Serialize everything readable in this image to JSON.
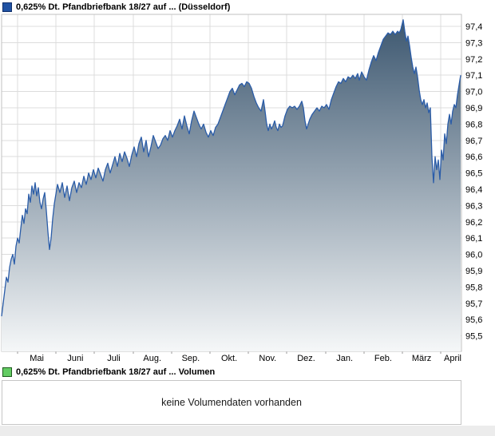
{
  "price_chart": {
    "legend": "0,625% Dt. Pfandbriefbank 18/27 auf ... (Düsseldorf)",
    "marker_color": "#2052a3",
    "marker_border": "#12306b"
  },
  "volume_panel": {
    "legend": "0,625% Dt. Pfandbriefbank 18/27 auf ... Volumen",
    "marker_color": "#63cc63",
    "marker_border": "#1e5c1e",
    "message": "keine Volumendaten vorhanden"
  },
  "chart_data": {
    "type": "area",
    "title": "0,625% Dt. Pfandbriefbank 18/27 auf ... (Düsseldorf)",
    "xlabel": "",
    "ylabel": "",
    "x_tick_labels": [
      "Mai",
      "Juni",
      "Juli",
      "Aug.",
      "Sep.",
      "Okt.",
      "Nov.",
      "Dez.",
      "Jan.",
      "Feb.",
      "März",
      "April"
    ],
    "y_ticks": [
      97.4,
      97.3,
      97.2,
      97.1,
      97.0,
      96.9,
      96.8,
      96.7,
      96.6,
      96.5,
      96.4,
      96.3,
      96.2,
      96.1,
      96.0,
      95.9,
      95.8,
      95.7,
      95.6,
      95.5
    ],
    "ylim": [
      95.41,
      97.47
    ],
    "grid": true,
    "legend_position": "top-left",
    "y_axis_position": "right",
    "line_color": "#2a5ca8",
    "fill_top": "#3a556e",
    "fill_bottom": "#f5f7f8",
    "grid_color": "#dcdcdc",
    "border_color": "#c2c2c2",
    "points": [
      [
        2,
        95.62
      ],
      [
        4,
        95.7
      ],
      [
        6,
        95.78
      ],
      [
        8,
        95.86
      ],
      [
        10,
        95.83
      ],
      [
        12,
        95.92
      ],
      [
        14,
        95.97
      ],
      [
        16,
        96.0
      ],
      [
        18,
        95.94
      ],
      [
        20,
        96.05
      ],
      [
        22,
        96.1
      ],
      [
        24,
        96.07
      ],
      [
        26,
        96.16
      ],
      [
        28,
        96.24
      ],
      [
        30,
        96.19
      ],
      [
        32,
        96.28
      ],
      [
        34,
        96.25
      ],
      [
        36,
        96.37
      ],
      [
        38,
        96.32
      ],
      [
        40,
        96.42
      ],
      [
        42,
        96.37
      ],
      [
        44,
        96.44
      ],
      [
        46,
        96.36
      ],
      [
        48,
        96.41
      ],
      [
        50,
        96.32
      ],
      [
        52,
        96.28
      ],
      [
        54,
        96.34
      ],
      [
        56,
        96.38
      ],
      [
        58,
        96.27
      ],
      [
        60,
        96.14
      ],
      [
        62,
        96.03
      ],
      [
        64,
        96.1
      ],
      [
        66,
        96.22
      ],
      [
        68,
        96.31
      ],
      [
        70,
        96.37
      ],
      [
        72,
        96.43
      ],
      [
        75,
        96.38
      ],
      [
        78,
        96.44
      ],
      [
        81,
        96.35
      ],
      [
        84,
        96.42
      ],
      [
        87,
        96.33
      ],
      [
        90,
        96.41
      ],
      [
        93,
        96.45
      ],
      [
        96,
        96.38
      ],
      [
        99,
        96.44
      ],
      [
        102,
        96.41
      ],
      [
        105,
        96.48
      ],
      [
        108,
        96.43
      ],
      [
        111,
        96.5
      ],
      [
        114,
        96.46
      ],
      [
        117,
        96.52
      ],
      [
        120,
        96.47
      ],
      [
        123,
        96.53
      ],
      [
        126,
        96.49
      ],
      [
        129,
        96.45
      ],
      [
        132,
        96.52
      ],
      [
        135,
        96.56
      ],
      [
        138,
        96.5
      ],
      [
        141,
        96.55
      ],
      [
        144,
        96.6
      ],
      [
        147,
        96.54
      ],
      [
        150,
        96.62
      ],
      [
        153,
        96.57
      ],
      [
        156,
        96.63
      ],
      [
        159,
        96.59
      ],
      [
        162,
        96.54
      ],
      [
        165,
        96.61
      ],
      [
        168,
        96.66
      ],
      [
        171,
        96.6
      ],
      [
        174,
        96.68
      ],
      [
        177,
        96.72
      ],
      [
        180,
        96.63
      ],
      [
        183,
        96.7
      ],
      [
        186,
        96.6
      ],
      [
        189,
        96.66
      ],
      [
        192,
        96.73
      ],
      [
        195,
        96.69
      ],
      [
        198,
        96.65
      ],
      [
        201,
        96.67
      ],
      [
        204,
        96.71
      ],
      [
        207,
        96.73
      ],
      [
        210,
        96.7
      ],
      [
        213,
        96.76
      ],
      [
        216,
        96.72
      ],
      [
        219,
        96.76
      ],
      [
        222,
        96.79
      ],
      [
        225,
        96.83
      ],
      [
        228,
        96.77
      ],
      [
        231,
        96.85
      ],
      [
        234,
        96.79
      ],
      [
        237,
        96.74
      ],
      [
        240,
        96.82
      ],
      [
        243,
        96.88
      ],
      [
        246,
        96.84
      ],
      [
        249,
        96.8
      ],
      [
        252,
        96.77
      ],
      [
        255,
        96.8
      ],
      [
        258,
        96.75
      ],
      [
        261,
        96.72
      ],
      [
        264,
        96.76
      ],
      [
        267,
        96.73
      ],
      [
        270,
        96.78
      ],
      [
        273,
        96.8
      ],
      [
        276,
        96.84
      ],
      [
        279,
        96.88
      ],
      [
        282,
        96.92
      ],
      [
        285,
        96.96
      ],
      [
        288,
        97.0
      ],
      [
        291,
        97.02
      ],
      [
        294,
        96.98
      ],
      [
        297,
        97.01
      ],
      [
        300,
        97.04
      ],
      [
        303,
        97.05
      ],
      [
        306,
        97.03
      ],
      [
        309,
        97.06
      ],
      [
        312,
        97.05
      ],
      [
        315,
        97.02
      ],
      [
        318,
        96.97
      ],
      [
        321,
        96.93
      ],
      [
        324,
        96.9
      ],
      [
        327,
        96.88
      ],
      [
        330,
        96.95
      ],
      [
        332,
        96.88
      ],
      [
        334,
        96.8
      ],
      [
        336,
        96.76
      ],
      [
        338,
        96.8
      ],
      [
        340,
        96.77
      ],
      [
        342,
        96.79
      ],
      [
        344,
        96.82
      ],
      [
        346,
        96.78
      ],
      [
        348,
        96.76
      ],
      [
        350,
        96.8
      ],
      [
        352,
        96.78
      ],
      [
        354,
        96.79
      ],
      [
        357,
        96.85
      ],
      [
        360,
        96.89
      ],
      [
        363,
        96.91
      ],
      [
        366,
        96.9
      ],
      [
        369,
        96.91
      ],
      [
        372,
        96.89
      ],
      [
        375,
        96.91
      ],
      [
        378,
        96.94
      ],
      [
        380,
        96.9
      ],
      [
        382,
        96.82
      ],
      [
        384,
        96.77
      ],
      [
        386,
        96.8
      ],
      [
        388,
        96.83
      ],
      [
        391,
        96.86
      ],
      [
        394,
        96.88
      ],
      [
        397,
        96.9
      ],
      [
        400,
        96.88
      ],
      [
        403,
        96.91
      ],
      [
        406,
        96.9
      ],
      [
        409,
        96.92
      ],
      [
        412,
        96.89
      ],
      [
        415,
        96.95
      ],
      [
        418,
        96.99
      ],
      [
        421,
        97.03
      ],
      [
        424,
        97.06
      ],
      [
        427,
        97.05
      ],
      [
        430,
        97.08
      ],
      [
        433,
        97.06
      ],
      [
        436,
        97.09
      ],
      [
        439,
        97.08
      ],
      [
        442,
        97.1
      ],
      [
        445,
        97.08
      ],
      [
        448,
        97.11
      ],
      [
        450,
        97.07
      ],
      [
        453,
        97.12
      ],
      [
        456,
        97.09
      ],
      [
        459,
        97.07
      ],
      [
        462,
        97.13
      ],
      [
        465,
        97.18
      ],
      [
        468,
        97.22
      ],
      [
        471,
        97.19
      ],
      [
        474,
        97.24
      ],
      [
        477,
        97.28
      ],
      [
        480,
        97.32
      ],
      [
        483,
        97.34
      ],
      [
        486,
        97.36
      ],
      [
        489,
        97.35
      ],
      [
        492,
        97.37
      ],
      [
        495,
        97.35
      ],
      [
        498,
        97.37
      ],
      [
        500,
        97.36
      ],
      [
        502,
        97.38
      ],
      [
        505,
        97.44
      ],
      [
        507,
        97.37
      ],
      [
        509,
        97.31
      ],
      [
        511,
        97.34
      ],
      [
        513,
        97.28
      ],
      [
        515,
        97.21
      ],
      [
        517,
        97.15
      ],
      [
        519,
        97.11
      ],
      [
        521,
        97.15
      ],
      [
        523,
        97.09
      ],
      [
        525,
        97.01
      ],
      [
        527,
        96.95
      ],
      [
        529,
        96.92
      ],
      [
        531,
        96.95
      ],
      [
        533,
        96.9
      ],
      [
        535,
        96.93
      ],
      [
        537,
        96.87
      ],
      [
        539,
        96.9
      ],
      [
        541,
        96.6
      ],
      [
        543,
        96.44
      ],
      [
        545,
        96.6
      ],
      [
        547,
        96.52
      ],
      [
        549,
        96.58
      ],
      [
        551,
        96.46
      ],
      [
        553,
        96.64
      ],
      [
        555,
        96.58
      ],
      [
        557,
        96.74
      ],
      [
        559,
        96.68
      ],
      [
        561,
        96.8
      ],
      [
        563,
        96.86
      ],
      [
        565,
        96.8
      ],
      [
        567,
        96.88
      ],
      [
        569,
        96.92
      ],
      [
        571,
        96.9
      ],
      [
        573,
        96.98
      ],
      [
        575,
        97.04
      ],
      [
        577,
        97.1
      ]
    ]
  }
}
